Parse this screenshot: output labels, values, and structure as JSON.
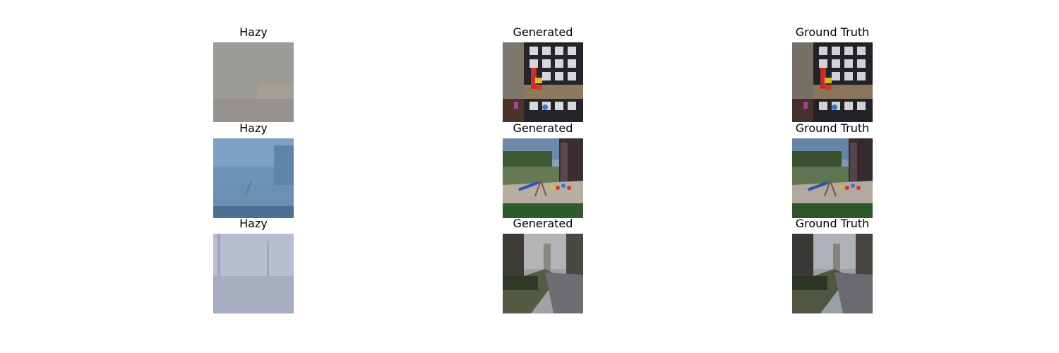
{
  "figure": {
    "rows": [
      {
        "scene": "shelves",
        "panels": [
          {
            "kind": "hazy",
            "title": "Hazy"
          },
          {
            "kind": "generated",
            "title": "Generated"
          },
          {
            "kind": "ground_truth",
            "title": "Ground Truth"
          }
        ]
      },
      {
        "scene": "playground",
        "panels": [
          {
            "kind": "hazy",
            "title": "Hazy"
          },
          {
            "kind": "generated",
            "title": "Generated"
          },
          {
            "kind": "ground_truth",
            "title": "Ground Truth"
          }
        ]
      },
      {
        "scene": "park",
        "panels": [
          {
            "kind": "hazy",
            "title": "Hazy"
          },
          {
            "kind": "generated",
            "title": "Generated"
          },
          {
            "kind": "ground_truth",
            "title": "Ground Truth"
          }
        ]
      }
    ]
  }
}
